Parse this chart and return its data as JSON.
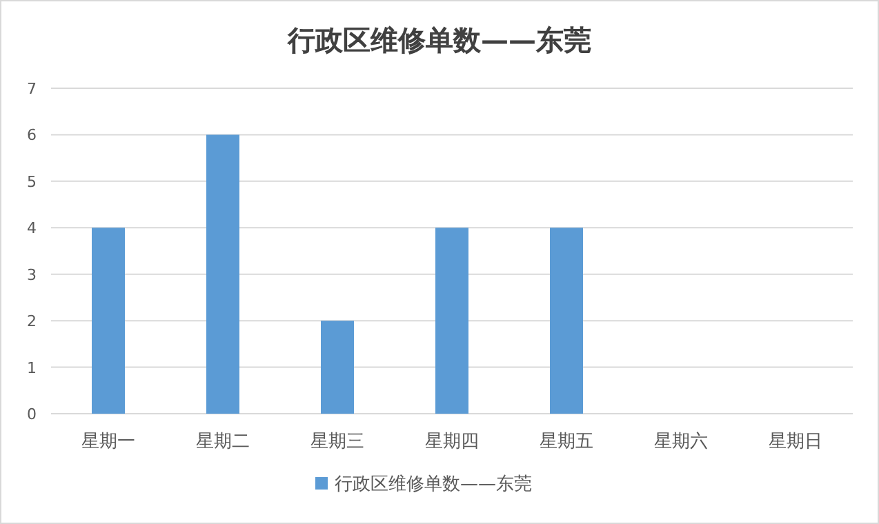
{
  "chart_data": {
    "type": "bar",
    "title": "行政区维修单数——东莞",
    "categories": [
      "星期一",
      "星期二",
      "星期三",
      "星期四",
      "星期五",
      "星期六",
      "星期日"
    ],
    "series": [
      {
        "name": "行政区维修单数——东莞",
        "color": "#5b9bd5",
        "values": [
          4,
          6,
          2,
          4,
          4,
          0,
          0
        ]
      }
    ],
    "ylim": [
      0,
      7
    ],
    "yticks": [
      0,
      1,
      2,
      3,
      4,
      5,
      6,
      7
    ],
    "grid": "y",
    "legend": "bottom"
  }
}
